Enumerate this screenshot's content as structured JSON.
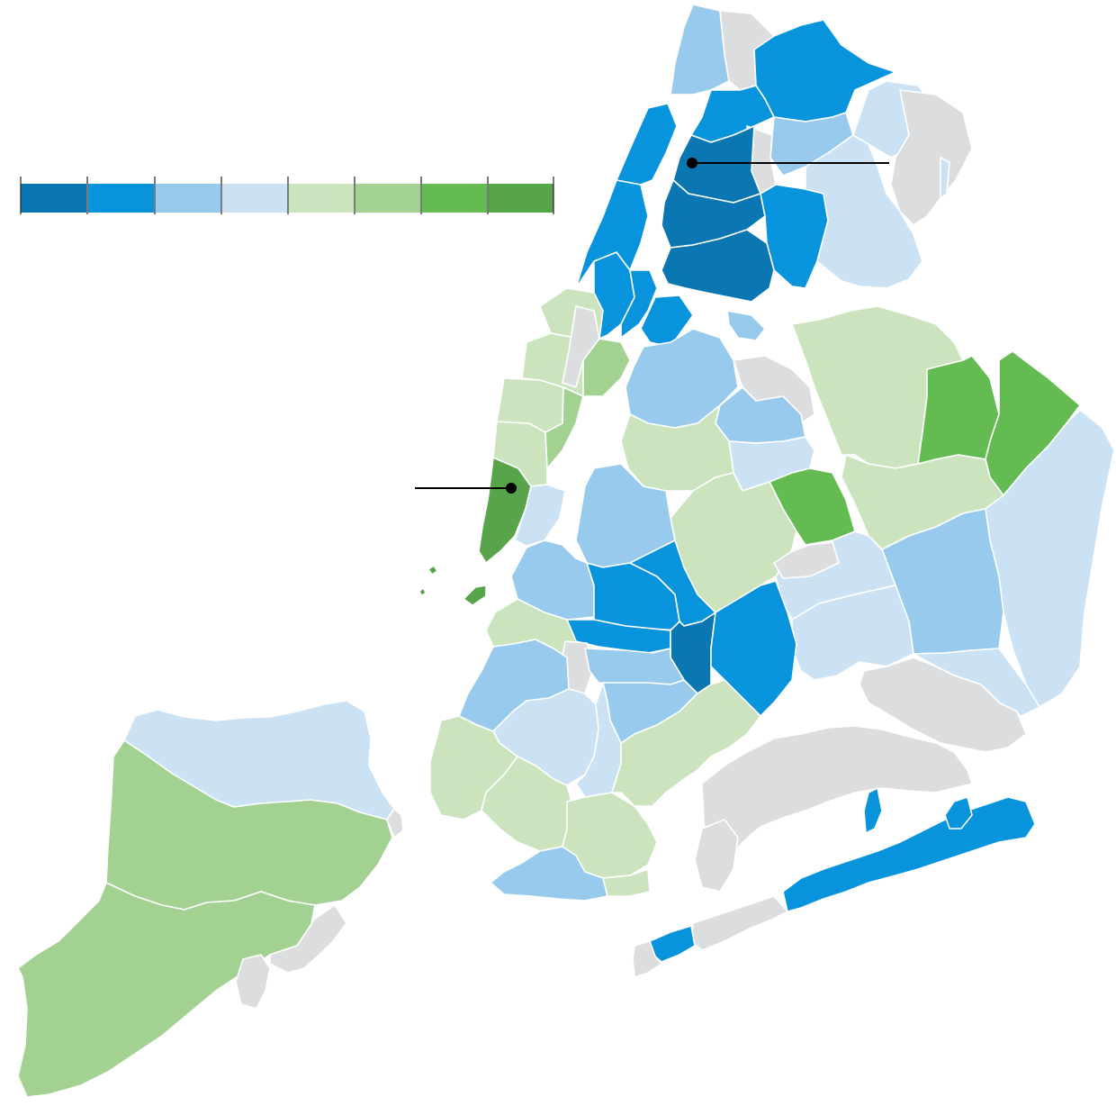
{
  "map": {
    "colors": {
      "c1": "#0a77b2",
      "c2": "#0794dc",
      "c3": "#97caed",
      "c4": "#cbe2f5",
      "c5": "#cbe4be",
      "c6": "#a3d192",
      "c7": "#63bb52",
      "c8": "#58a44b",
      "nodata": "#dcdddf"
    },
    "legend": {
      "classes": [
        "c1",
        "c2",
        "c3",
        "c4",
        "c5",
        "c6",
        "c7",
        "c8"
      ],
      "labels": []
    },
    "callouts": [
      {
        "label": ""
      },
      {
        "label": ""
      }
    ]
  }
}
